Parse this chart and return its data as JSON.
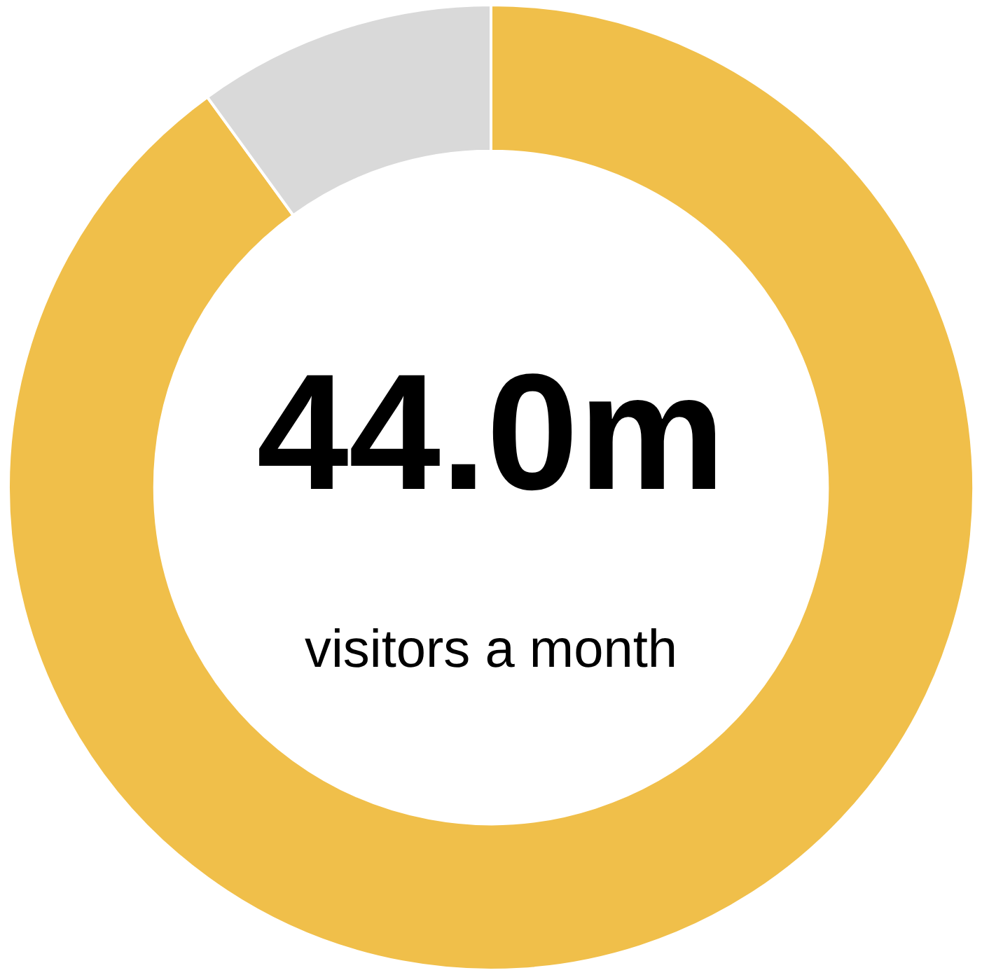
{
  "chart_data": {
    "type": "donut",
    "title": "44.0m",
    "subtitle": "visitors a month",
    "categories": [
      null,
      null
    ],
    "values": [
      90,
      10
    ],
    "colors": [
      "#f0bf4a",
      "#d9d9d9"
    ]
  }
}
